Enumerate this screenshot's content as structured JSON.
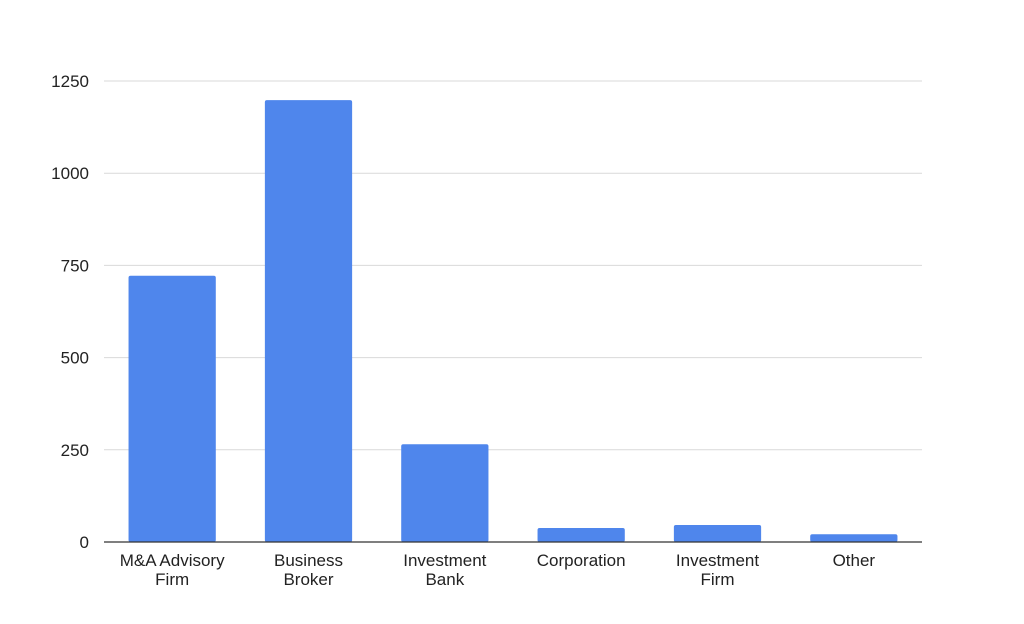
{
  "chart_data": {
    "type": "bar",
    "title": "",
    "xlabel": "",
    "ylabel": "",
    "categories": [
      [
        "M&A Advisory",
        "Firm"
      ],
      [
        "Business",
        "Broker"
      ],
      [
        "Investment",
        "Bank"
      ],
      [
        "Corporation"
      ],
      [
        "Investment",
        "Firm"
      ],
      [
        "Other"
      ]
    ],
    "values": [
      722,
      1198,
      265,
      38,
      46,
      21
    ],
    "ylim": [
      0,
      1250
    ],
    "yticks": [
      "0",
      "250",
      "500",
      "750",
      "1000",
      "1250"
    ],
    "grid": true,
    "legend": "none",
    "colors": {
      "bar": "#4f86ec",
      "grid": "#d9d9d9",
      "axis": "#333333",
      "text": "#222222"
    }
  }
}
